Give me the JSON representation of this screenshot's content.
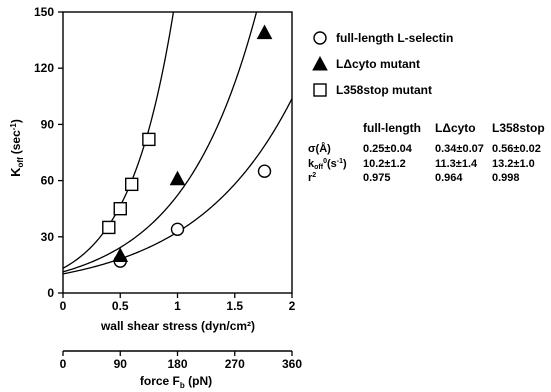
{
  "chart_data": {
    "type": "scatter",
    "ylabel_main": "K",
    "ylabel_sub": "off",
    "ylabel_unit": "(sec",
    "ylabel_unit_sup": "-1",
    "ylabel_close": ")",
    "xlabel": "wall shear stress (dyn/cm²)",
    "xlabel2_main": "force F",
    "xlabel2_sub": "b",
    "xlabel2_unit": " (pN)",
    "xlim": [
      0,
      2
    ],
    "ylim": [
      0,
      150
    ],
    "x2lim": [
      0,
      360
    ],
    "xticks": [
      0,
      0.5,
      1,
      1.5,
      2
    ],
    "xtick_labels": [
      "0",
      "0.5",
      "1",
      "1.5",
      "2"
    ],
    "yticks": [
      0,
      30,
      60,
      90,
      120,
      150
    ],
    "ytick_labels": [
      "0",
      "30",
      "60",
      "90",
      "120",
      "150"
    ],
    "x2ticks": [
      0,
      90,
      180,
      270,
      360
    ],
    "x2tick_labels": [
      "0",
      "90",
      "180",
      "270",
      "360"
    ],
    "legend_position": "top-right",
    "series": [
      {
        "name": "full-length L-selectin",
        "marker": "circle",
        "points": [
          [
            0.5,
            17
          ],
          [
            1.0,
            34
          ],
          [
            1.76,
            65
          ]
        ],
        "fit": {
          "k0": 10.2,
          "rate": 1.16
        }
      },
      {
        "name": "LΔcyto mutant",
        "marker": "triangle",
        "points": [
          [
            0.5,
            20
          ],
          [
            1.0,
            61
          ],
          [
            1.76,
            139
          ]
        ],
        "fit": {
          "k0": 11.3,
          "rate": 1.53
        }
      },
      {
        "name": "L358stop mutant",
        "marker": "square",
        "points": [
          [
            0.4,
            35
          ],
          [
            0.5,
            45
          ],
          [
            0.6,
            58
          ],
          [
            0.75,
            82
          ]
        ],
        "fit": {
          "k0": 13.2,
          "rate": 2.52
        }
      }
    ],
    "table": {
      "columns": [
        "full-length",
        "LΔcyto",
        "L358stop"
      ],
      "rows": [
        {
          "label": "σ(Å)",
          "values": [
            "0.25±0.04",
            "0.34±0.07",
            "0.56±0.02"
          ]
        },
        {
          "label": "k",
          "sub": "off",
          "sup": "0",
          "unit": "(s",
          "unit_sup": "-1",
          "unit_close": ")",
          "values": [
            "10.2±1.2",
            "11.3±1.4",
            "13.2±1.0"
          ]
        },
        {
          "label": "r",
          "sup": "2",
          "values": [
            "0.975",
            "0.964",
            "0.998"
          ]
        }
      ]
    }
  }
}
